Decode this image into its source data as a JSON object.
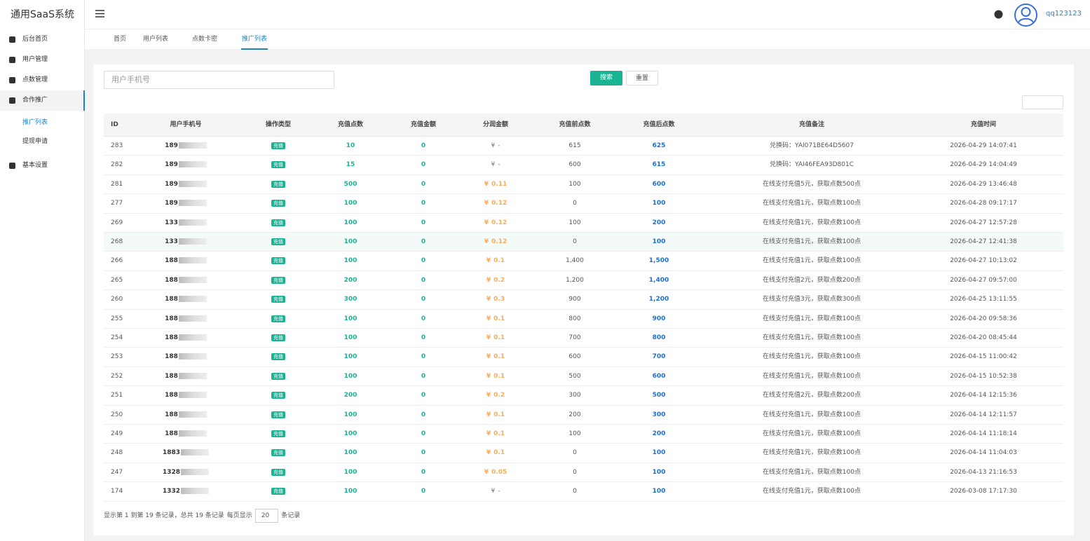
{
  "app": {
    "title": "通用SaaS系统",
    "user": "qq123123"
  },
  "sidebar": [
    {
      "label": "后台首页"
    },
    {
      "label": "用户管理"
    },
    {
      "label": "点数管理"
    },
    {
      "label": "合作推广"
    },
    {
      "label": "基本设置"
    }
  ],
  "submenu": [
    "推广列表",
    "提现申请"
  ],
  "tabs": [
    "首页",
    "用户列表",
    "点数卡密",
    "推广列表"
  ],
  "search": {
    "placeholder": "用户手机号",
    "search_button": "搜索",
    "reset_button": "重置"
  },
  "table": {
    "columns": [
      "ID",
      "用户手机号",
      "操作类型",
      "充值点数",
      "充值金额",
      "分润金额",
      "充值前点数",
      "充值后点数",
      "充值备注",
      "充值时间"
    ],
    "currency": "¥",
    "rows": [
      [
        "283",
        "189",
        "充值",
        "10",
        "0",
        "-",
        "615",
        "625",
        "兑换码：YAI071BE64D5607",
        "2026-04-29 14:07:41"
      ],
      [
        "282",
        "189",
        "充值",
        "15",
        "0",
        "-",
        "600",
        "615",
        "兑换码：YAI46FEA93D801C",
        "2026-04-29 14:04:49"
      ],
      [
        "281",
        "189",
        "充值",
        "500",
        "0",
        "0.11",
        "100",
        "600",
        "在线支付充值5元，获取点数500点",
        "2026-04-29 13:46:48"
      ],
      [
        "277",
        "189",
        "充值",
        "100",
        "0",
        "0.12",
        "0",
        "100",
        "在线支付充值1元，获取点数100点",
        "2026-04-28 09:17:17"
      ],
      [
        "269",
        "133",
        "充值",
        "100",
        "0",
        "0.12",
        "100",
        "200",
        "在线支付充值1元，获取点数100点",
        "2026-04-27 12:57:28"
      ],
      [
        "268",
        "133",
        "充值",
        "100",
        "0",
        "0.12",
        "0",
        "100",
        "在线支付充值1元，获取点数100点",
        "2026-04-27 12:41:38"
      ],
      [
        "266",
        "188",
        "充值",
        "100",
        "0",
        "0.1",
        "1,400",
        "1,500",
        "在线支付充值1元，获取点数100点",
        "2026-04-27 10:13:02"
      ],
      [
        "265",
        "188",
        "充值",
        "200",
        "0",
        "0.2",
        "1,200",
        "1,400",
        "在线支付充值2元，获取点数200点",
        "2026-04-27 09:57:00"
      ],
      [
        "260",
        "188",
        "充值",
        "300",
        "0",
        "0.3",
        "900",
        "1,200",
        "在线支付充值3元，获取点数300点",
        "2026-04-25 13:11:55"
      ],
      [
        "255",
        "188",
        "充值",
        "100",
        "0",
        "0.1",
        "800",
        "900",
        "在线支付充值1元，获取点数100点",
        "2026-04-20 09:58:36"
      ],
      [
        "254",
        "188",
        "充值",
        "100",
        "0",
        "0.1",
        "700",
        "800",
        "在线支付充值1元，获取点数100点",
        "2026-04-20 08:45:44"
      ],
      [
        "253",
        "188",
        "充值",
        "100",
        "0",
        "0.1",
        "600",
        "700",
        "在线支付充值1元，获取点数100点",
        "2026-04-15 11:00:42"
      ],
      [
        "252",
        "188",
        "充值",
        "100",
        "0",
        "0.1",
        "500",
        "600",
        "在线支付充值1元，获取点数100点",
        "2026-04-15 10:52:38"
      ],
      [
        "251",
        "188",
        "充值",
        "200",
        "0",
        "0.2",
        "300",
        "500",
        "在线支付充值2元，获取点数200点",
        "2026-04-14 12:15:36"
      ],
      [
        "250",
        "188",
        "充值",
        "100",
        "0",
        "0.1",
        "200",
        "300",
        "在线支付充值1元，获取点数100点",
        "2026-04-14 12:11:57"
      ],
      [
        "249",
        "188",
        "充值",
        "100",
        "0",
        "0.1",
        "100",
        "200",
        "在线支付充值1元，获取点数100点",
        "2026-04-14 11:18:14"
      ],
      [
        "248",
        "1883",
        "充值",
        "100",
        "0",
        "0.1",
        "0",
        "100",
        "在线支付充值1元，获取点数100点",
        "2026-04-14 11:04:03"
      ],
      [
        "247",
        "1328",
        "充值",
        "100",
        "0",
        "0.05",
        "0",
        "100",
        "在线支付充值1元，获取点数100点",
        "2026-04-13 21:16:53"
      ],
      [
        "174",
        "1332",
        "充值",
        "100",
        "0",
        "-",
        "0",
        "100",
        "在线支付充值1元，获取点数100点",
        "2026-03-08 17:17:30"
      ]
    ]
  },
  "pagination": {
    "summary": "显示第 1 到第 19 条记录，总共 19 条记录",
    "per_page_label": "每页显示",
    "per_page": "20",
    "suffix": "条记录"
  }
}
